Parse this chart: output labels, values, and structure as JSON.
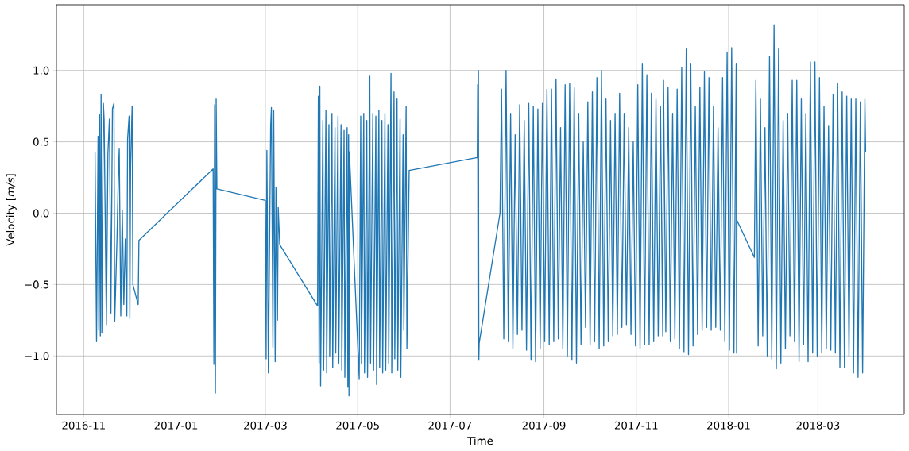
{
  "chart_data": {
    "type": "line",
    "xlabel": "Time",
    "ylabel": "Velocity [*m/s*]",
    "xlim": [
      "2016-10-14",
      "2018-04-27"
    ],
    "ylim": [
      -1.41,
      1.46
    ],
    "xticks": [
      "2016-11",
      "2017-01",
      "2017-03",
      "2017-05",
      "2017-07",
      "2017-09",
      "2017-11",
      "2018-01",
      "2018-03"
    ],
    "yticks": [
      {
        "value": -1.0,
        "label": "−1.0"
      },
      {
        "value": -0.5,
        "label": "−0.5"
      },
      {
        "value": 0.0,
        "label": "0.0"
      },
      {
        "value": 0.5,
        "label": "0.5"
      },
      {
        "value": 1.0,
        "label": "1.0"
      }
    ],
    "grid": true,
    "line_style": "solid",
    "x": [
      "2016-11-08T12:00",
      "2016-11-09T12:00",
      "2016-11-10T12:00",
      "2016-11-11T00:00",
      "2016-11-11T12:00",
      "2016-11-12T00:00",
      "2016-11-12T12:00",
      "2016-11-13T00:00",
      "2016-11-14T00:00",
      "2016-11-14T12:00",
      "2016-11-15T12:00",
      "2016-11-16T00:00",
      "2016-11-17T00:00",
      "2016-11-18T00:00",
      "2016-11-19T00:00",
      "2016-11-20T00:00",
      "2016-11-21T00:00",
      "2016-11-21T12:00",
      "2016-11-23T00:00",
      "2016-11-24T00:00",
      "2016-11-24T12:00",
      "2016-11-25T12:00",
      "2016-11-26T12:00",
      "2016-11-27T12:00",
      "2016-11-28T12:00",
      "2016-11-29T12:00",
      "2016-11-30T00:00",
      "2016-12-01T00:00",
      "2016-12-01T12:00",
      "2016-12-02T00:00",
      "2016-12-03T00:00",
      "2016-12-03T12:00",
      "2016-12-07T00:00",
      "2016-12-07T12:00",
      "2017-01-25T12:00",
      "2017-01-26T00:00",
      "2017-01-26T12:00",
      "2017-01-27T00:00",
      "2017-01-27T12:00",
      "2017-01-28T00:00",
      "2017-03-01T00:00",
      "2017-03-01T12:00",
      "2017-03-02T00:00",
      "2017-03-03T00:00",
      "2017-03-04T12:00",
      "2017-03-05T00:00",
      "2017-03-06T00:00",
      "2017-03-06T12:00",
      "2017-03-07T12:00",
      "2017-03-08T00:00",
      "2017-03-09T00:00",
      "2017-03-09T12:00",
      "2017-03-10T12:00",
      "2017-04-04T12:00",
      "2017-04-05T00:00",
      "2017-04-05T12:00",
      "2017-04-06T00:00",
      "2017-04-06T12:00",
      "2017-04-08T00:00",
      "2017-04-08T12:00",
      "2017-04-10T00:00",
      "2017-04-10T12:00",
      "2017-04-12T00:00",
      "2017-04-12T12:00",
      "2017-04-14T00:00",
      "2017-04-14T12:00",
      "2017-04-16T00:00",
      "2017-04-16T12:00",
      "2017-04-18T00:00",
      "2017-04-18T12:00",
      "2017-04-20T00:00",
      "2017-04-20T12:00",
      "2017-04-22T00:00",
      "2017-04-22T12:00",
      "2017-04-24T00:00",
      "2017-04-24T12:00",
      "2017-04-25T00:00",
      "2017-04-25T06:00",
      "2017-04-25T12:00",
      "2017-05-02T00:00",
      "2017-05-03T00:00",
      "2017-05-03T12:00",
      "2017-05-05T00:00",
      "2017-05-05T12:00",
      "2017-05-07T00:00",
      "2017-05-07T12:00",
      "2017-05-09T00:00",
      "2017-05-09T12:00",
      "2017-05-11T00:00",
      "2017-05-11T12:00",
      "2017-05-13T00:00",
      "2017-05-13T12:00",
      "2017-05-15T00:00",
      "2017-05-15T12:00",
      "2017-05-17T00:00",
      "2017-05-17T12:00",
      "2017-05-19T00:00",
      "2017-05-19T12:00",
      "2017-05-21T00:00",
      "2017-05-21T12:00",
      "2017-05-23T00:00",
      "2017-05-23T12:00",
      "2017-05-25T00:00",
      "2017-05-25T12:00",
      "2017-05-27T00:00",
      "2017-05-27T12:00",
      "2017-05-29T00:00",
      "2017-05-29T12:00",
      "2017-05-31T00:00",
      "2017-05-31T12:00",
      "2017-06-02T00:00",
      "2017-06-02T12:00",
      "2017-06-04T00:00",
      "2017-07-19T00:00",
      "2017-07-19T06:00",
      "2017-07-19T12:00",
      "2017-07-19T18:00",
      "2017-07-20T00:00",
      "2017-07-20T06:00",
      "2017-08-03T00:00",
      "2017-08-04T00:00",
      "2017-08-05T12:00",
      "2017-08-07T00:00",
      "2017-08-08T12:00",
      "2017-08-10T00:00",
      "2017-08-11T12:00",
      "2017-08-13T00:00",
      "2017-08-14T12:00",
      "2017-08-16T00:00",
      "2017-08-17T12:00",
      "2017-08-19T00:00",
      "2017-08-20T12:00",
      "2017-08-22T00:00",
      "2017-08-23T12:00",
      "2017-08-25T00:00",
      "2017-08-26T12:00",
      "2017-08-28T00:00",
      "2017-08-29T12:00",
      "2017-08-31T00:00",
      "2017-09-01T12:00",
      "2017-09-03T00:00",
      "2017-09-04T12:00",
      "2017-09-06T00:00",
      "2017-09-07T12:00",
      "2017-09-09T00:00",
      "2017-09-10T12:00",
      "2017-09-12T00:00",
      "2017-09-13T12:00",
      "2017-09-15T00:00",
      "2017-09-16T12:00",
      "2017-09-18T00:00",
      "2017-09-19T12:00",
      "2017-09-21T00:00",
      "2017-09-22T12:00",
      "2017-09-24T00:00",
      "2017-09-25T12:00",
      "2017-09-27T00:00",
      "2017-09-28T12:00",
      "2017-09-30T00:00",
      "2017-10-01T12:00",
      "2017-10-03T00:00",
      "2017-10-04T12:00",
      "2017-10-06T00:00",
      "2017-10-07T12:00",
      "2017-10-09T00:00",
      "2017-10-10T12:00",
      "2017-10-12T00:00",
      "2017-10-13T12:00",
      "2017-10-15T00:00",
      "2017-10-16T12:00",
      "2017-10-18T00:00",
      "2017-10-19T12:00",
      "2017-10-21T00:00",
      "2017-10-22T12:00",
      "2017-10-24T00:00",
      "2017-10-25T12:00",
      "2017-10-27T00:00",
      "2017-10-28T12:00",
      "2017-10-30T00:00",
      "2017-10-31T12:00",
      "2017-11-02T00:00",
      "2017-11-03T12:00",
      "2017-11-05T00:00",
      "2017-11-06T12:00",
      "2017-11-08T00:00",
      "2017-11-09T12:00",
      "2017-11-11T00:00",
      "2017-11-12T12:00",
      "2017-11-14T00:00",
      "2017-11-15T12:00",
      "2017-11-17T00:00",
      "2017-11-18T12:00",
      "2017-11-19T00:00",
      "2017-11-20T12:00",
      "2017-11-22T00:00",
      "2017-11-23T12:00",
      "2017-11-25T00:00",
      "2017-11-26T12:00",
      "2017-11-28T00:00",
      "2017-11-29T12:00",
      "2017-12-01T00:00",
      "2017-12-02T12:00",
      "2017-12-04T00:00",
      "2017-12-05T12:00",
      "2017-12-07T00:00",
      "2017-12-08T12:00",
      "2017-12-10T00:00",
      "2017-12-11T12:00",
      "2017-12-13T00:00",
      "2017-12-14T12:00",
      "2017-12-16T00:00",
      "2017-12-17T12:00",
      "2017-12-19T00:00",
      "2017-12-20T12:00",
      "2017-12-22T00:00",
      "2017-12-23T12:00",
      "2017-12-25T00:00",
      "2017-12-26T12:00",
      "2017-12-28T00:00",
      "2017-12-29T12:00",
      "2017-12-31T00:00",
      "2018-01-01T12:00",
      "2018-01-03T00:00",
      "2018-01-04T12:00",
      "2018-01-06T00:00",
      "2018-01-06T06:00",
      "2018-01-06T12:00",
      "2018-01-18T00:00",
      "2018-01-19T00:00",
      "2018-01-20T12:00",
      "2018-01-22T00:00",
      "2018-01-23T12:00",
      "2018-01-25T00:00",
      "2018-01-26T12:00",
      "2018-01-28T00:00",
      "2018-01-29T12:00",
      "2018-01-31T00:00",
      "2018-02-01T12:00",
      "2018-02-03T00:00",
      "2018-02-04T12:00",
      "2018-02-06T00:00",
      "2018-02-07T12:00",
      "2018-02-09T00:00",
      "2018-02-10T12:00",
      "2018-02-12T00:00",
      "2018-02-13T12:00",
      "2018-02-15T00:00",
      "2018-02-16T12:00",
      "2018-02-18T00:00",
      "2018-02-19T12:00",
      "2018-02-21T00:00",
      "2018-02-22T12:00",
      "2018-02-24T00:00",
      "2018-02-25T12:00",
      "2018-02-27T00:00",
      "2018-02-28T12:00",
      "2018-03-02T00:00",
      "2018-03-03T12:00",
      "2018-03-05T00:00",
      "2018-03-06T12:00",
      "2018-03-08T00:00",
      "2018-03-09T12:00",
      "2018-03-11T00:00",
      "2018-03-12T12:00",
      "2018-03-14T00:00",
      "2018-03-15T12:00",
      "2018-03-17T00:00",
      "2018-03-18T12:00",
      "2018-03-20T00:00",
      "2018-03-21T12:00",
      "2018-03-23T00:00",
      "2018-03-24T12:00",
      "2018-03-26T00:00",
      "2018-03-27T12:00",
      "2018-03-29T00:00",
      "2018-03-30T12:00",
      "2018-04-01T00:00",
      "2018-04-01T12:00"
    ],
    "series": [
      {
        "color": "#1f77b4",
        "values": [
          0.43,
          -0.9,
          0.54,
          -0.82,
          0.69,
          -0.86,
          0.83,
          -0.84,
          0.77,
          0.66,
          -0.3,
          -0.78,
          0.42,
          0.66,
          -0.7,
          0.73,
          0.77,
          -0.76,
          -0.18,
          0.31,
          0.45,
          -0.72,
          0.02,
          -0.64,
          -0.18,
          -0.72,
          0.52,
          0.68,
          -0.74,
          0.34,
          0.75,
          -0.5,
          -0.64,
          -0.19,
          0.31,
          -1.06,
          0.76,
          -1.26,
          0.8,
          0.17,
          0.09,
          -1.02,
          0.44,
          -1.12,
          0.61,
          0.74,
          -0.94,
          0.72,
          -1.04,
          0.18,
          -0.75,
          0.04,
          -0.22,
          -0.65,
          0.82,
          -1.05,
          0.89,
          -1.21,
          0.65,
          -1.1,
          0.72,
          -1.12,
          0.62,
          -1.0,
          0.7,
          -1.08,
          0.6,
          -0.98,
          0.68,
          -1.05,
          0.62,
          -1.1,
          0.58,
          -1.15,
          0.6,
          -1.22,
          0.55,
          -1.28,
          0.43,
          -1.16,
          0.68,
          -1.05,
          0.7,
          -1.12,
          0.65,
          -1.15,
          0.96,
          -1.05,
          0.7,
          -1.1,
          0.68,
          -1.2,
          0.72,
          -1.08,
          0.65,
          -1.12,
          0.7,
          -1.1,
          0.62,
          -1.05,
          0.98,
          -1.12,
          0.85,
          -1.02,
          0.8,
          -1.1,
          0.66,
          -1.15,
          0.55,
          -0.82,
          0.75,
          -0.95,
          0.3,
          0.39,
          0.9,
          -0.93,
          1.0,
          -1.03,
          -0.91,
          0.0,
          0.87,
          -0.88,
          1.0,
          -0.9,
          0.7,
          -0.95,
          0.55,
          -0.85,
          0.76,
          -0.82,
          0.65,
          -0.96,
          0.77,
          -1.03,
          0.75,
          -1.04,
          0.73,
          -0.95,
          0.77,
          -0.9,
          0.87,
          -0.92,
          0.87,
          -0.9,
          0.94,
          -0.88,
          0.6,
          -0.95,
          0.9,
          -1.0,
          0.91,
          -1.03,
          0.88,
          -1.05,
          0.7,
          -0.92,
          0.5,
          -0.8,
          0.78,
          -0.92,
          0.85,
          -0.9,
          0.95,
          -0.95,
          1.0,
          -0.93,
          0.8,
          -0.9,
          0.65,
          -0.86,
          0.7,
          -0.85,
          0.84,
          -0.8,
          0.7,
          -0.78,
          0.6,
          -0.85,
          0.5,
          -0.93,
          0.9,
          -0.95,
          1.05,
          -0.92,
          0.97,
          -0.92,
          0.84,
          -0.9,
          0.8,
          -0.86,
          0.75,
          -0.86,
          0.93,
          -0.83,
          0.88,
          -0.9,
          0.7,
          -0.88,
          0.87,
          -0.95,
          1.02,
          -0.97,
          1.15,
          -0.99,
          1.05,
          -0.93,
          0.75,
          -0.85,
          0.88,
          -0.82,
          0.99,
          -0.8,
          0.95,
          -0.82,
          0.75,
          -0.8,
          0.6,
          -0.82,
          0.95,
          -0.9,
          1.13,
          -0.96,
          1.16,
          -0.98,
          1.05,
          -0.98,
          -0.05,
          -0.31,
          0.93,
          -0.93,
          0.8,
          -0.86,
          0.6,
          -1.0,
          1.1,
          -1.02,
          1.32,
          -1.09,
          1.15,
          -1.05,
          0.65,
          -0.95,
          0.7,
          -0.86,
          0.93,
          -0.9,
          0.93,
          -1.04,
          0.8,
          -0.92,
          0.7,
          -1.04,
          1.06,
          -0.98,
          1.06,
          -1.0,
          0.95,
          -0.98,
          0.75,
          -0.95,
          0.61,
          -0.96,
          0.83,
          -0.98,
          0.91,
          -1.08,
          0.85,
          -1.08,
          0.82,
          -1.0,
          0.8,
          -1.12,
          0.8,
          -1.15,
          0.78,
          -1.12,
          0.8,
          0.43
        ]
      }
    ]
  }
}
